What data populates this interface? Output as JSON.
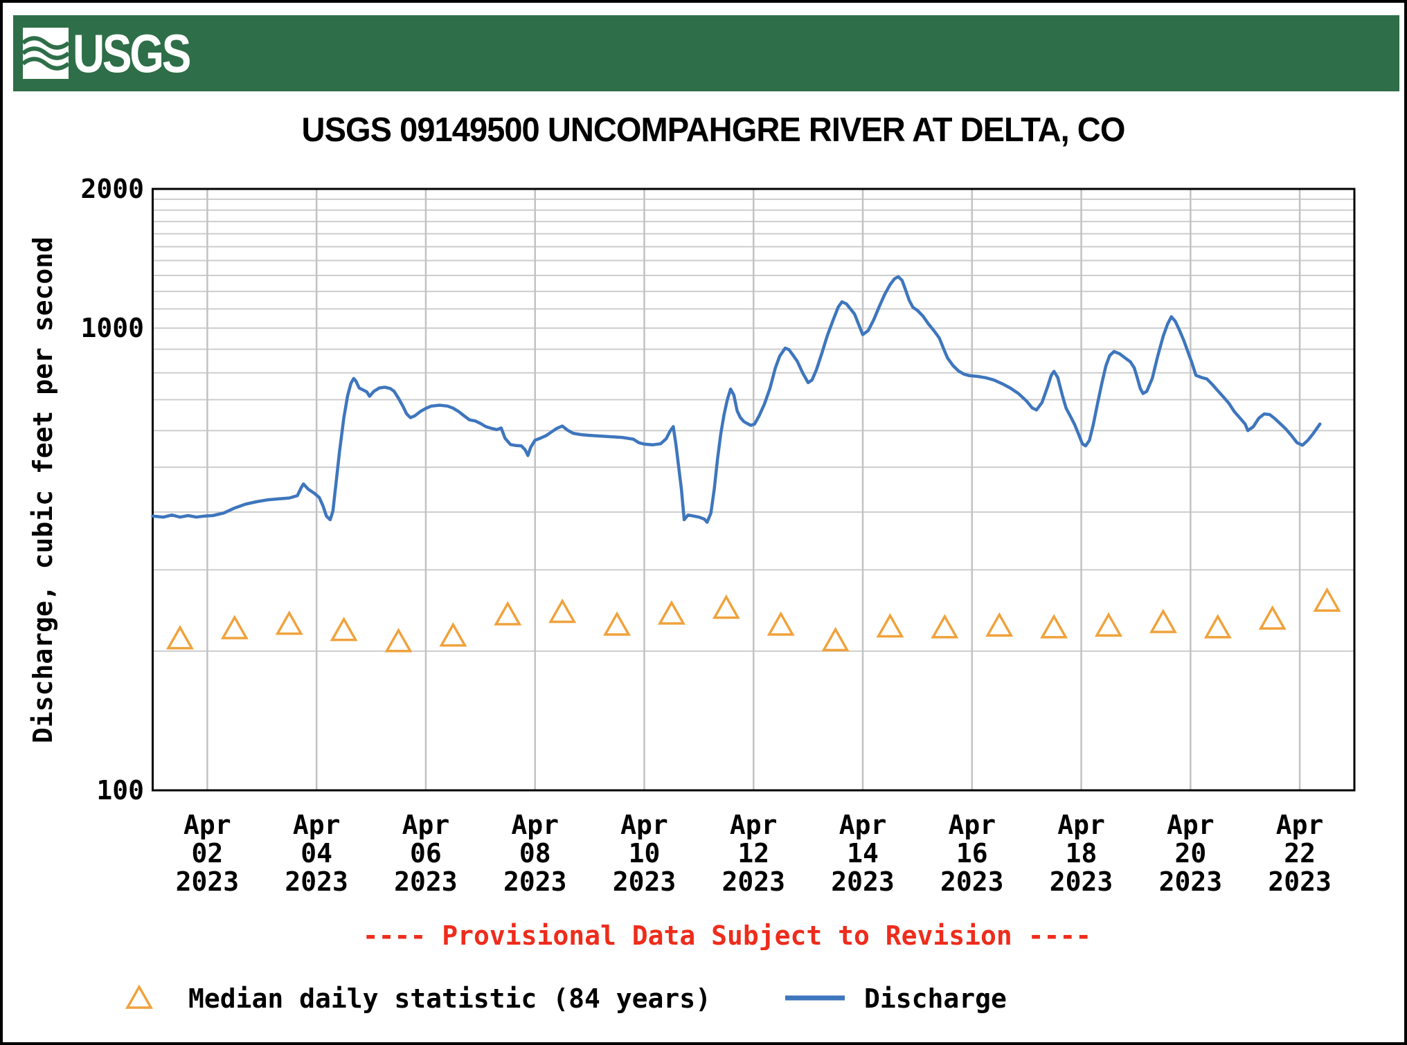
{
  "banner": {
    "logo_text": "USGS",
    "background_color": "#2e6e48",
    "logo_color": "#ffffff"
  },
  "title": "USGS 09149500 UNCOMPAHGRE RIVER AT DELTA, CO",
  "y_axis": {
    "label": "Discharge, cubic feet per second",
    "ticks": [
      {
        "value": 2000,
        "label": "2000"
      },
      {
        "value": 1000,
        "label": "1000"
      },
      {
        "value": 100,
        "label": "100"
      }
    ]
  },
  "x_axis": {
    "ticks": [
      {
        "day": 1,
        "lines": [
          "Apr",
          "02",
          "2023"
        ]
      },
      {
        "day": 3,
        "lines": [
          "Apr",
          "04",
          "2023"
        ]
      },
      {
        "day": 5,
        "lines": [
          "Apr",
          "06",
          "2023"
        ]
      },
      {
        "day": 7,
        "lines": [
          "Apr",
          "08",
          "2023"
        ]
      },
      {
        "day": 9,
        "lines": [
          "Apr",
          "10",
          "2023"
        ]
      },
      {
        "day": 11,
        "lines": [
          "Apr",
          "12",
          "2023"
        ]
      },
      {
        "day": 13,
        "lines": [
          "Apr",
          "14",
          "2023"
        ]
      },
      {
        "day": 15,
        "lines": [
          "Apr",
          "16",
          "2023"
        ]
      },
      {
        "day": 17,
        "lines": [
          "Apr",
          "18",
          "2023"
        ]
      },
      {
        "day": 19,
        "lines": [
          "Apr",
          "20",
          "2023"
        ]
      },
      {
        "day": 21,
        "lines": [
          "Apr",
          "22",
          "2023"
        ]
      }
    ]
  },
  "provisional_note": {
    "text": "---- Provisional Data Subject to Revision ----",
    "color": "#ee2c1c"
  },
  "legend": {
    "items": [
      {
        "marker": "triangle-icon",
        "label": "Median daily statistic (84 years)",
        "color": "#f0a23c"
      },
      {
        "marker": "line-swatch",
        "label": "Discharge",
        "color": "#3e76bd"
      }
    ]
  },
  "chart_data": {
    "type": "line",
    "title": "USGS 09149500 UNCOMPAHGRE RIVER AT DELTA, CO",
    "xlabel": "",
    "ylabel": "Discharge, cubic feet per second",
    "y_scale": "log",
    "ylim": [
      100,
      2000
    ],
    "grid": true,
    "legend_position": "bottom",
    "y_gridlines": [
      200,
      300,
      400,
      500,
      600,
      700,
      800,
      900,
      1000,
      1100,
      1200,
      1300,
      1400,
      1500,
      1600,
      1700,
      1800,
      1900
    ],
    "x_start_date": "2023-04-01",
    "x_end_date": "2023-04-23",
    "x_gridline_days": [
      1,
      3,
      5,
      7,
      9,
      11,
      13,
      15,
      17,
      19,
      21
    ],
    "x_tick_dates": [
      "Apr 02 2023",
      "Apr 04 2023",
      "Apr 06 2023",
      "Apr 08 2023",
      "Apr 10 2023",
      "Apr 12 2023",
      "Apr 14 2023",
      "Apr 16 2023",
      "Apr 18 2023",
      "Apr 20 2023",
      "Apr 22 2023"
    ],
    "series": [
      {
        "name": "Discharge",
        "type": "line",
        "color": "#3e76bd",
        "x_unit": "april_date",
        "points": [
          [
            1.0,
            392
          ],
          [
            1.2,
            390
          ],
          [
            1.35,
            394
          ],
          [
            1.5,
            390
          ],
          [
            1.65,
            393
          ],
          [
            1.8,
            390
          ],
          [
            1.95,
            392
          ],
          [
            2.1,
            393
          ],
          [
            2.3,
            398
          ],
          [
            2.5,
            408
          ],
          [
            2.7,
            416
          ],
          [
            2.9,
            421
          ],
          [
            3.1,
            425
          ],
          [
            3.3,
            427
          ],
          [
            3.5,
            429
          ],
          [
            3.65,
            434
          ],
          [
            3.72,
            452
          ],
          [
            3.76,
            460
          ],
          [
            3.85,
            448
          ],
          [
            3.95,
            440
          ],
          [
            4.05,
            430
          ],
          [
            4.12,
            412
          ],
          [
            4.18,
            392
          ],
          [
            4.25,
            385
          ],
          [
            4.3,
            402
          ],
          [
            4.35,
            455
          ],
          [
            4.42,
            540
          ],
          [
            4.5,
            640
          ],
          [
            4.57,
            715
          ],
          [
            4.63,
            760
          ],
          [
            4.68,
            778
          ],
          [
            4.72,
            768
          ],
          [
            4.78,
            742
          ],
          [
            4.85,
            735
          ],
          [
            4.92,
            728
          ],
          [
            4.97,
            712
          ],
          [
            5.05,
            730
          ],
          [
            5.15,
            742
          ],
          [
            5.25,
            745
          ],
          [
            5.35,
            740
          ],
          [
            5.42,
            730
          ],
          [
            5.5,
            705
          ],
          [
            5.58,
            678
          ],
          [
            5.65,
            652
          ],
          [
            5.72,
            640
          ],
          [
            5.8,
            646
          ],
          [
            5.9,
            660
          ],
          [
            6.0,
            670
          ],
          [
            6.1,
            678
          ],
          [
            6.25,
            681
          ],
          [
            6.4,
            678
          ],
          [
            6.5,
            671
          ],
          [
            6.6,
            660
          ],
          [
            6.7,
            646
          ],
          [
            6.8,
            633
          ],
          [
            6.9,
            630
          ],
          [
            7.0,
            622
          ],
          [
            7.1,
            612
          ],
          [
            7.2,
            607
          ],
          [
            7.3,
            603
          ],
          [
            7.38,
            608
          ],
          [
            7.45,
            578
          ],
          [
            7.55,
            560
          ],
          [
            7.65,
            557
          ],
          [
            7.75,
            556
          ],
          [
            7.82,
            545
          ],
          [
            7.87,
            530
          ],
          [
            7.92,
            552
          ],
          [
            8.0,
            572
          ],
          [
            8.1,
            578
          ],
          [
            8.2,
            585
          ],
          [
            8.3,
            596
          ],
          [
            8.4,
            607
          ],
          [
            8.5,
            614
          ],
          [
            8.6,
            601
          ],
          [
            8.7,
            592
          ],
          [
            8.85,
            588
          ],
          [
            9.0,
            586
          ],
          [
            9.2,
            584
          ],
          [
            9.4,
            582
          ],
          [
            9.6,
            580
          ],
          [
            9.8,
            575
          ],
          [
            9.9,
            565
          ],
          [
            10.0,
            561
          ],
          [
            10.15,
            559
          ],
          [
            10.3,
            562
          ],
          [
            10.4,
            576
          ],
          [
            10.47,
            598
          ],
          [
            10.53,
            612
          ],
          [
            10.58,
            560
          ],
          [
            10.63,
            500
          ],
          [
            10.68,
            448
          ],
          [
            10.73,
            385
          ],
          [
            10.8,
            394
          ],
          [
            10.9,
            392
          ],
          [
            11.0,
            390
          ],
          [
            11.1,
            386
          ],
          [
            11.15,
            380
          ],
          [
            11.22,
            398
          ],
          [
            11.28,
            448
          ],
          [
            11.34,
            520
          ],
          [
            11.4,
            590
          ],
          [
            11.46,
            650
          ],
          [
            11.52,
            700
          ],
          [
            11.58,
            738
          ],
          [
            11.64,
            716
          ],
          [
            11.7,
            662
          ],
          [
            11.76,
            640
          ],
          [
            11.82,
            628
          ],
          [
            11.88,
            622
          ],
          [
            11.95,
            616
          ],
          [
            12.02,
            620
          ],
          [
            12.1,
            645
          ],
          [
            12.2,
            685
          ],
          [
            12.3,
            740
          ],
          [
            12.4,
            820
          ],
          [
            12.48,
            870
          ],
          [
            12.58,
            905
          ],
          [
            12.65,
            898
          ],
          [
            12.72,
            875
          ],
          [
            12.8,
            848
          ],
          [
            12.9,
            800
          ],
          [
            13.0,
            762
          ],
          [
            13.07,
            772
          ],
          [
            13.15,
            812
          ],
          [
            13.25,
            882
          ],
          [
            13.35,
            962
          ],
          [
            13.45,
            1035
          ],
          [
            13.55,
            1110
          ],
          [
            13.62,
            1140
          ],
          [
            13.7,
            1128
          ],
          [
            13.78,
            1098
          ],
          [
            13.85,
            1072
          ],
          [
            13.92,
            1022
          ],
          [
            14.0,
            968
          ],
          [
            14.1,
            988
          ],
          [
            14.2,
            1042
          ],
          [
            14.3,
            1112
          ],
          [
            14.4,
            1182
          ],
          [
            14.5,
            1242
          ],
          [
            14.58,
            1278
          ],
          [
            14.65,
            1292
          ],
          [
            14.72,
            1268
          ],
          [
            14.78,
            1212
          ],
          [
            14.85,
            1148
          ],
          [
            14.92,
            1108
          ],
          [
            15.0,
            1092
          ],
          [
            15.1,
            1062
          ],
          [
            15.2,
            1022
          ],
          [
            15.3,
            988
          ],
          [
            15.4,
            952
          ],
          [
            15.47,
            908
          ],
          [
            15.55,
            862
          ],
          [
            15.65,
            830
          ],
          [
            15.75,
            808
          ],
          [
            15.85,
            795
          ],
          [
            15.95,
            789
          ],
          [
            16.1,
            786
          ],
          [
            16.25,
            781
          ],
          [
            16.4,
            772
          ],
          [
            16.55,
            758
          ],
          [
            16.7,
            742
          ],
          [
            16.85,
            722
          ],
          [
            17.0,
            695
          ],
          [
            17.1,
            672
          ],
          [
            17.18,
            665
          ],
          [
            17.28,
            690
          ],
          [
            17.38,
            745
          ],
          [
            17.45,
            790
          ],
          [
            17.5,
            806
          ],
          [
            17.57,
            782
          ],
          [
            17.65,
            718
          ],
          [
            17.72,
            672
          ],
          [
            17.8,
            645
          ],
          [
            17.88,
            618
          ],
          [
            17.95,
            590
          ],
          [
            18.02,
            562
          ],
          [
            18.08,
            556
          ],
          [
            18.15,
            572
          ],
          [
            18.22,
            618
          ],
          [
            18.3,
            688
          ],
          [
            18.38,
            762
          ],
          [
            18.45,
            828
          ],
          [
            18.52,
            872
          ],
          [
            18.6,
            890
          ],
          [
            18.7,
            880
          ],
          [
            18.8,
            862
          ],
          [
            18.9,
            845
          ],
          [
            18.97,
            820
          ],
          [
            19.02,
            785
          ],
          [
            19.08,
            740
          ],
          [
            19.13,
            722
          ],
          [
            19.2,
            730
          ],
          [
            19.3,
            778
          ],
          [
            19.4,
            870
          ],
          [
            19.5,
            960
          ],
          [
            19.58,
            1020
          ],
          [
            19.65,
            1058
          ],
          [
            19.72,
            1035
          ],
          [
            19.8,
            988
          ],
          [
            19.88,
            938
          ],
          [
            19.95,
            890
          ],
          [
            20.02,
            845
          ],
          [
            20.1,
            790
          ],
          [
            20.2,
            782
          ],
          [
            20.3,
            776
          ],
          [
            20.4,
            755
          ],
          [
            20.5,
            732
          ],
          [
            20.6,
            710
          ],
          [
            20.7,
            688
          ],
          [
            20.8,
            660
          ],
          [
            20.9,
            640
          ],
          [
            21.0,
            620
          ],
          [
            21.05,
            600
          ],
          [
            21.15,
            612
          ],
          [
            21.25,
            638
          ],
          [
            21.35,
            652
          ],
          [
            21.45,
            650
          ],
          [
            21.55,
            636
          ],
          [
            21.65,
            620
          ],
          [
            21.75,
            604
          ],
          [
            21.85,
            585
          ],
          [
            21.95,
            565
          ],
          [
            22.05,
            558
          ],
          [
            22.15,
            572
          ],
          [
            22.25,
            592
          ],
          [
            22.37,
            620
          ]
        ]
      },
      {
        "name": "Median daily statistic (84 years)",
        "type": "scatter",
        "marker": "triangle",
        "color": "#f0a23c",
        "x_unit": "april_date",
        "points": [
          [
            1.5,
            213
          ],
          [
            2.5,
            224
          ],
          [
            3.5,
            229
          ],
          [
            4.5,
            222
          ],
          [
            5.5,
            210
          ],
          [
            6.5,
            216
          ],
          [
            7.5,
            240
          ],
          [
            8.5,
            243
          ],
          [
            9.5,
            228
          ],
          [
            10.5,
            241
          ],
          [
            11.5,
            248
          ],
          [
            12.5,
            228
          ],
          [
            13.5,
            211
          ],
          [
            14.5,
            226
          ],
          [
            15.5,
            225
          ],
          [
            16.5,
            227
          ],
          [
            17.5,
            225
          ],
          [
            18.5,
            227
          ],
          [
            19.5,
            231
          ],
          [
            20.5,
            225
          ],
          [
            21.5,
            235
          ],
          [
            22.5,
            257
          ]
        ]
      }
    ]
  }
}
